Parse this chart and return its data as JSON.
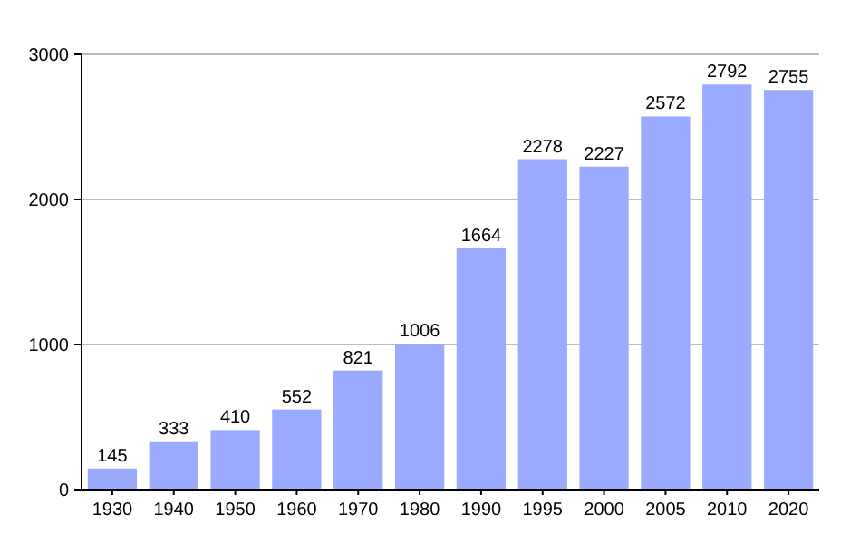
{
  "chart_data": {
    "type": "bar",
    "categories": [
      "1930",
      "1940",
      "1950",
      "1960",
      "1970",
      "1980",
      "1990",
      "1995",
      "2000",
      "2005",
      "2010",
      "2020"
    ],
    "values": [
      145,
      333,
      410,
      552,
      821,
      1006,
      1664,
      2278,
      2227,
      2572,
      2792,
      2755
    ],
    "color": "#99aaff",
    "ylim": [
      0,
      3000
    ],
    "yticks": [
      0,
      1000,
      2000,
      3000
    ],
    "grid": "y",
    "data_labels": true
  }
}
